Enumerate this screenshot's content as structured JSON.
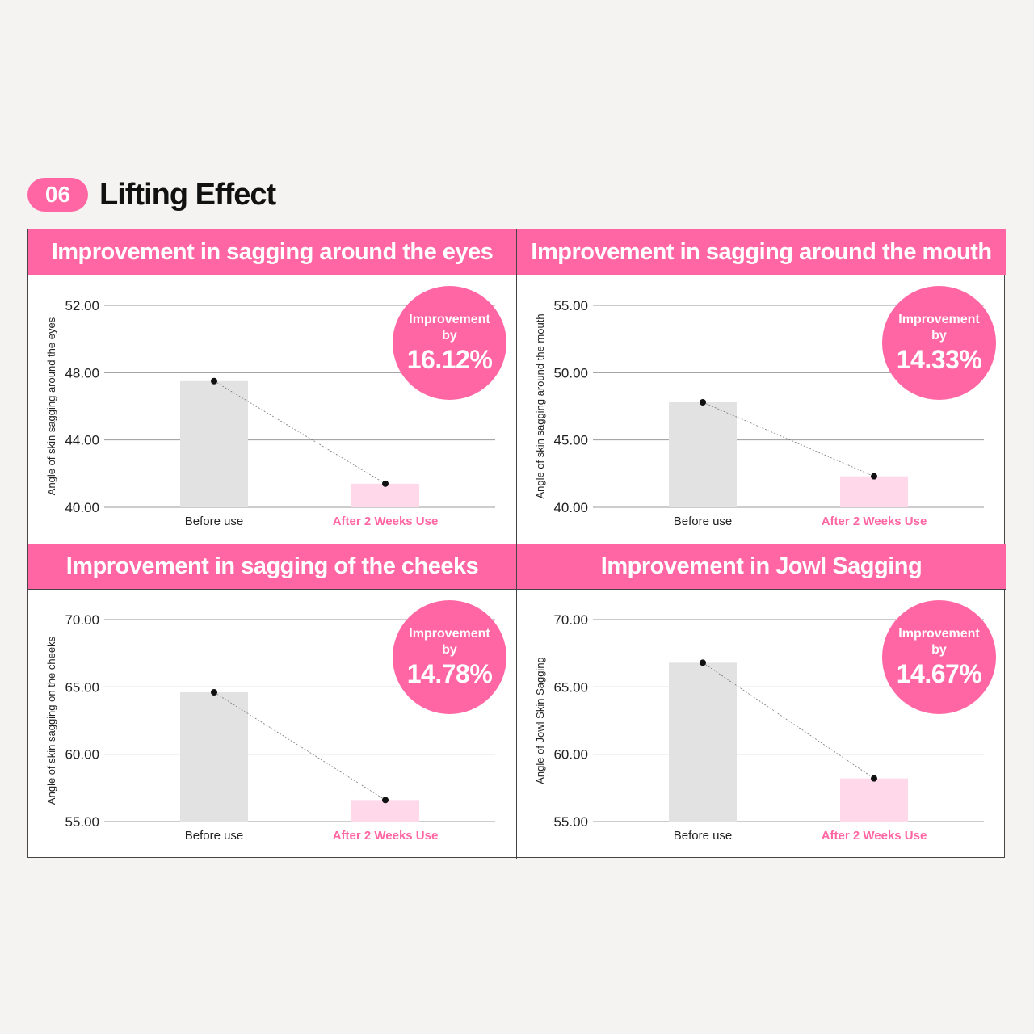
{
  "header": {
    "number": "06",
    "title": "Lifting Effect"
  },
  "colors": {
    "accent": "#ff66a3",
    "before_bar": "#e2e2e2",
    "after_bar": "#ffd9ea"
  },
  "improvement_label": {
    "line1": "Improvement",
    "line2": "by"
  },
  "panels": [
    {
      "title": "Improvement in sagging around the eyes",
      "improvement": "16.12%"
    },
    {
      "title": "Improvement in sagging around the mouth",
      "improvement": "14.33%"
    },
    {
      "title": "Improvement in sagging of the cheeks",
      "improvement": "14.78%"
    },
    {
      "title": "Improvement in Jowl Sagging",
      "improvement": "14.67%"
    }
  ],
  "chart_data": [
    {
      "type": "bar",
      "categories": [
        "Before use",
        "After 2 Weeks Use"
      ],
      "values": [
        47.5,
        41.4
      ],
      "ylabel": "Angle of skin sagging around the eyes",
      "ylim": [
        40,
        52
      ],
      "yticks": [
        "40.00",
        "44.00",
        "48.00",
        "52.00"
      ],
      "ytick_values": [
        40,
        44,
        48,
        52
      ]
    },
    {
      "type": "bar",
      "categories": [
        "Before use",
        "After 2 Weeks Use"
      ],
      "values": [
        47.8,
        42.3
      ],
      "ylabel": "Angle of skin sagging around the mouth",
      "ylim": [
        40,
        55
      ],
      "yticks": [
        "40.00",
        "45.00",
        "50.00",
        "55.00"
      ],
      "ytick_values": [
        40,
        45,
        50,
        55
      ]
    },
    {
      "type": "bar",
      "categories": [
        "Before use",
        "After 2 Weeks Use"
      ],
      "values": [
        64.6,
        56.6
      ],
      "ylabel": "Angle of skin sagging on the cheeks",
      "ylim": [
        55,
        70
      ],
      "yticks": [
        "55.00",
        "60.00",
        "65.00",
        "70.00"
      ],
      "ytick_values": [
        55,
        60,
        65,
        70
      ]
    },
    {
      "type": "bar",
      "categories": [
        "Before use",
        "After 2 Weeks Use"
      ],
      "values": [
        66.8,
        58.2
      ],
      "ylabel": "Angle of Jowl Skin Sagging",
      "ylim": [
        55,
        70
      ],
      "yticks": [
        "55.00",
        "60.00",
        "65.00",
        "70.00"
      ],
      "ytick_values": [
        55,
        60,
        65,
        70
      ]
    }
  ]
}
